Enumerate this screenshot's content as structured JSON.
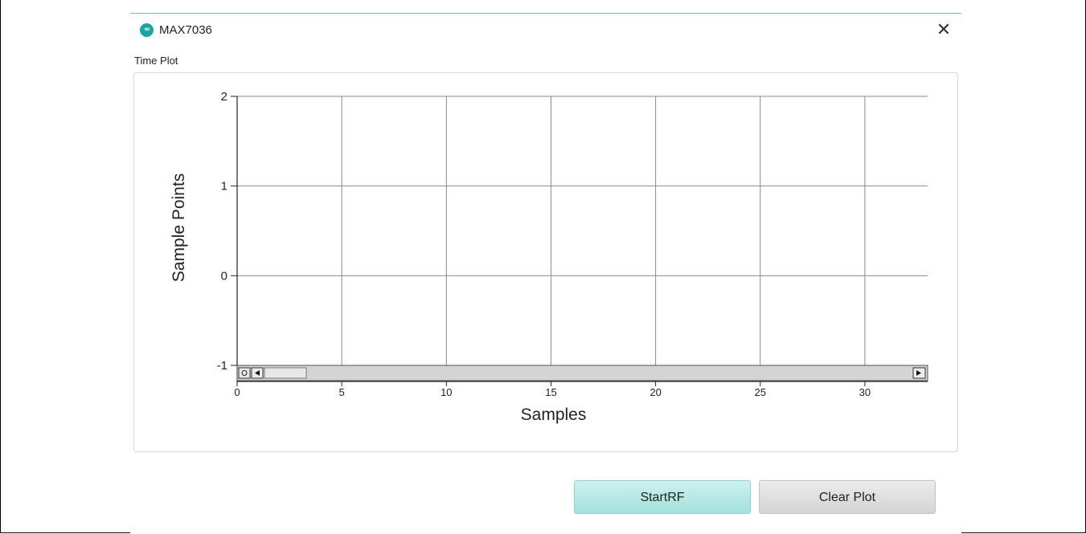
{
  "window": {
    "title": "MAX7036",
    "logo_text": "M"
  },
  "section": {
    "label": "Time Plot"
  },
  "chart_data": {
    "type": "line",
    "xlabel": "Samples",
    "ylabel": "Sample Points",
    "xlim": [
      0,
      33
    ],
    "ylim": [
      -1,
      2
    ],
    "x_ticks": [
      0,
      5,
      10,
      15,
      20,
      25,
      30
    ],
    "y_ticks": [
      -1,
      0,
      1,
      2
    ],
    "grid": true,
    "series": []
  },
  "buttons": {
    "start": "StartRF",
    "clear": "Clear Plot"
  },
  "colors": {
    "logo": "#1aa6a0",
    "accent_line": "#7fb0d8",
    "start_button": "#b3e8e3",
    "clear_button": "#dedede"
  }
}
